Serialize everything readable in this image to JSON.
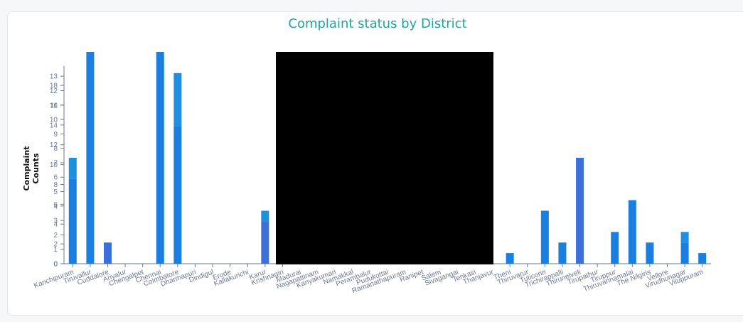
{
  "chart_data": {
    "type": "bar",
    "title": "Complaint status by District",
    "ylabel": "Complaint Counts",
    "xlabel": "",
    "grid": false,
    "legend": "none",
    "colors": {
      "series_a": "#1a7fe0",
      "series_b": "#3d6fd8",
      "series_c": "#1f8fdf"
    },
    "y_scales": [
      {
        "ticks": [
          "0",
          "1",
          "2",
          "3",
          "4",
          "5",
          "6",
          "7",
          "8",
          "9",
          "10",
          "11",
          "12",
          "13"
        ],
        "max": 13.6
      },
      {
        "ticks": [
          "0",
          "2",
          "4",
          "6",
          "8",
          "10",
          "12",
          "14",
          "16",
          "18"
        ],
        "max": 19.8
      }
    ],
    "categories": [
      "Kanchipuram",
      "Tiruvallur",
      "Cuddalore",
      "Ariyalur",
      "Chengalpet",
      "Chennai",
      "Coimbatore",
      "Dharmapuri",
      "Dindigul",
      "Erode",
      "Kallakurichi",
      "Karur",
      "Krishnagiri",
      "Madurai",
      "Nagapattinam",
      "Kanyakumari",
      "Namakkal",
      "Perambalur",
      "Pudukottai",
      "Ramanathapuram",
      "Ranipet",
      "Salem",
      "Sivagangai",
      "Tenkasi",
      "Thanjavur",
      "Theni",
      "Thiruvarur",
      "Tuticorin",
      "Trichirappalli",
      "Thirunelveli",
      "Tirupathur",
      "Tiruppur",
      "Thiruvannamalai",
      "The Nilgiris",
      "Vellore",
      "Virudhunagar",
      "Viluppuram"
    ],
    "series": [
      {
        "values": [
          8,
          20,
          2,
          0,
          0,
          20,
          13,
          0,
          0,
          0,
          0,
          4,
          0,
          null,
          null,
          null,
          null,
          null,
          null,
          null,
          null,
          null,
          null,
          null,
          null,
          1,
          0,
          5,
          2,
          10,
          0,
          3,
          6,
          2,
          0,
          2,
          1
        ]
      },
      {
        "values": [
          2,
          0,
          0,
          0,
          0,
          0,
          5,
          0,
          0,
          0,
          0,
          1,
          0,
          null,
          null,
          null,
          null,
          null,
          null,
          null,
          null,
          null,
          null,
          null,
          null,
          0,
          0,
          0,
          0,
          0,
          0,
          0,
          0,
          0,
          0,
          1,
          0
        ]
      }
    ],
    "ylim": [
      0,
      20
    ]
  }
}
